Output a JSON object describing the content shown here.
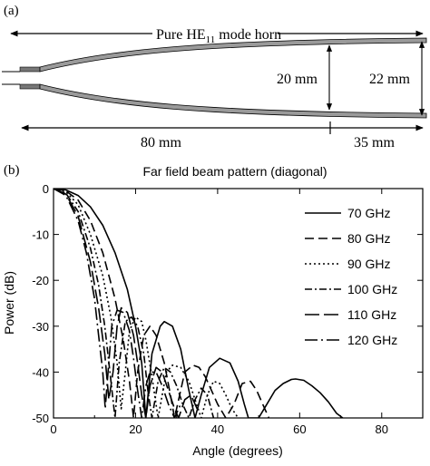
{
  "panel_a": {
    "label": "(a)",
    "title_main": "Pure HE",
    "title_sub": "11",
    "title_rest": " mode horn",
    "dim_20": "20 mm",
    "dim_22": "22 mm",
    "dim_80": "80 mm",
    "dim_35": "35 mm"
  },
  "panel_b": {
    "label": "(b)"
  },
  "chart_data": {
    "type": "line",
    "title": "Far field beam pattern (diagonal)",
    "xlabel": "Angle (degrees)",
    "ylabel": "Power (dB)",
    "xlim": [
      0,
      90
    ],
    "ylim": [
      -50,
      0
    ],
    "xticks": [
      "0",
      "20",
      "40",
      "60",
      "80"
    ],
    "yticks": [
      "0",
      "-10",
      "-20",
      "-30",
      "-40",
      "-50"
    ],
    "grid": false,
    "legend_position": "top-right",
    "series": [
      {
        "name": "70 GHz",
        "dash": "solid",
        "x": [
          0,
          3,
          6,
          9,
          12,
          15,
          18,
          20,
          21.5,
          22.5,
          24,
          26,
          27,
          29,
          31,
          33,
          34.5,
          36,
          38,
          40.5,
          43,
          45,
          46.5,
          47.5,
          49,
          50,
          52,
          54,
          56,
          58,
          59,
          61,
          63,
          65,
          67,
          69,
          70.5
        ],
        "y": [
          0,
          -0.3,
          -1.5,
          -4,
          -8,
          -14,
          -22,
          -30,
          -38,
          -50,
          -36,
          -30,
          -29,
          -30,
          -35,
          -44,
          -50,
          -45,
          -39,
          -37,
          -38,
          -42,
          -47,
          -50,
          -50,
          -50,
          -47,
          -44,
          -42.5,
          -41.6,
          -41.5,
          -41.8,
          -43,
          -44.5,
          -46.5,
          -49,
          -50
        ]
      },
      {
        "name": "80 GHz",
        "dash": "10,5",
        "x": [
          0,
          3,
          6,
          9,
          12,
          15,
          17,
          18.5,
          19.5,
          20.5,
          22,
          23.5,
          25,
          27,
          28.5,
          29.5,
          30.5,
          32,
          34,
          35.5,
          37,
          38.5,
          40,
          42,
          44,
          46,
          48,
          49.5,
          51,
          52.5
        ],
        "y": [
          0,
          -0.5,
          -2.5,
          -7,
          -14,
          -24,
          -33,
          -42,
          -50,
          -40,
          -32,
          -30,
          -32,
          -38,
          -45,
          -50,
          -46,
          -40,
          -38.5,
          -39,
          -41,
          -44,
          -47,
          -50,
          -47,
          -42.5,
          -42,
          -44,
          -47,
          -50
        ]
      },
      {
        "name": "90 GHz",
        "dash": "2,3",
        "x": [
          0,
          3,
          6,
          9,
          12,
          14,
          15.5,
          16.5,
          17.5,
          18.5,
          20,
          21.5,
          22.5,
          24,
          25.5,
          26.5,
          27.5,
          29,
          31,
          33,
          34.5,
          36,
          37.5,
          39,
          40.5,
          42,
          43.5,
          45
        ],
        "y": [
          0,
          -0.7,
          -3.5,
          -10,
          -19,
          -28,
          -38,
          -48,
          -40,
          -31,
          -28,
          -29,
          -33,
          -41,
          -50,
          -45,
          -40,
          -38.5,
          -39,
          -42,
          -46,
          -50,
          -45,
          -42,
          -42.5,
          -45,
          -48,
          -50
        ]
      },
      {
        "name": "100 GHz",
        "dash": "8,3,2,3",
        "x": [
          0,
          3,
          6,
          9,
          11,
          12.5,
          14,
          15,
          16,
          17.5,
          19,
          20.5,
          22,
          23,
          24,
          25.5,
          27,
          28.5,
          30,
          31.5,
          33,
          34.5,
          36,
          37.5,
          39
        ],
        "y": [
          0,
          -1,
          -5,
          -13,
          -21,
          -30,
          -42,
          -50,
          -38,
          -29,
          -28,
          -30,
          -36,
          -44,
          -50,
          -42,
          -39,
          -40,
          -43,
          -47,
          -50,
          -46,
          -43.5,
          -45,
          -50
        ]
      },
      {
        "name": "110 GHz",
        "dash": "16,5",
        "x": [
          0,
          3,
          6,
          9,
          11,
          12.5,
          13.5,
          14.5,
          15.5,
          16.5,
          18,
          19.5,
          20.5,
          21.5,
          22.5,
          23.5,
          25,
          26.5,
          28,
          29.5,
          30.5,
          32,
          33.5,
          35
        ],
        "y": [
          0,
          -1.2,
          -6,
          -16,
          -26,
          -36,
          -46,
          -40,
          -30,
          -26,
          -27,
          -32,
          -38,
          -45,
          -50,
          -43,
          -39,
          -40,
          -44,
          -48,
          -50,
          -46,
          -45,
          -48
        ]
      },
      {
        "name": "120 GHz",
        "dash": "14,4,2,4",
        "x": [
          0,
          3,
          6,
          8,
          10,
          11,
          12,
          12.6,
          13.3,
          14.2,
          15.5,
          17,
          18.5,
          19.5,
          20.5,
          21.5,
          22.5,
          23.5,
          25,
          26.5,
          28,
          29.5,
          31
        ],
        "y": [
          0,
          -1.5,
          -7,
          -14,
          -24,
          -32,
          -40,
          -48,
          -40,
          -30,
          -26.5,
          -27,
          -31,
          -37,
          -44,
          -50,
          -43,
          -40,
          -40,
          -43,
          -47,
          -50,
          -47
        ]
      }
    ]
  }
}
